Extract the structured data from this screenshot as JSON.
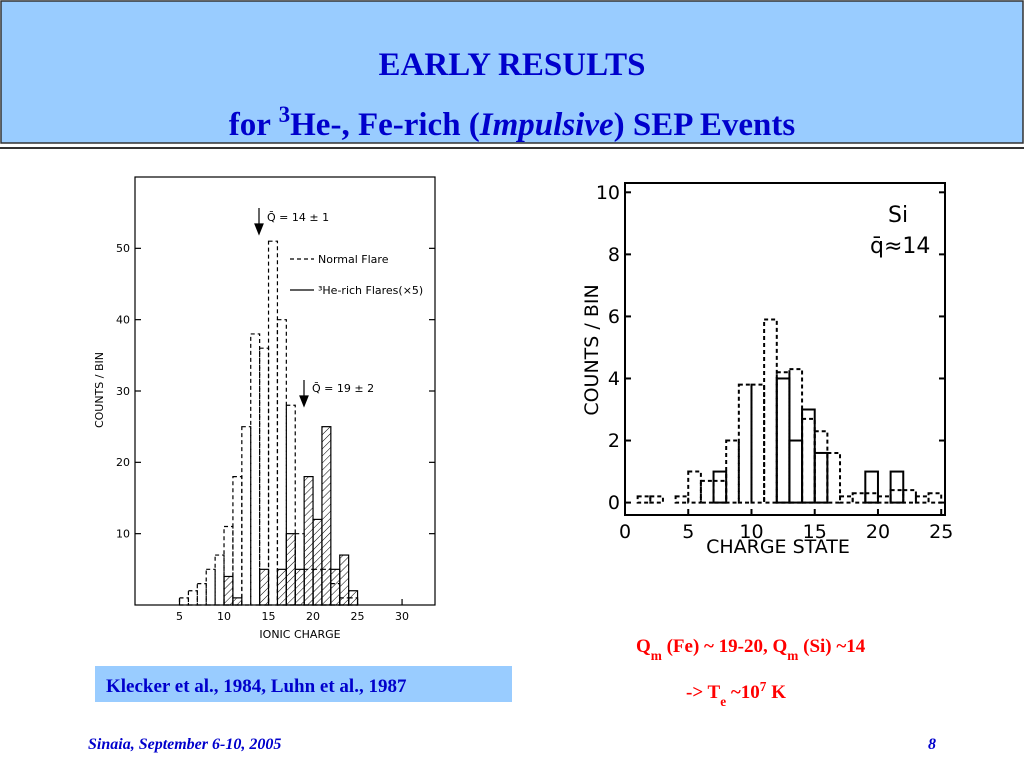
{
  "slide": {
    "title": "EARLY RESULTS",
    "subtitle_parts": [
      "for ",
      "3",
      "He-, Fe-rich (",
      "Impulsive",
      ") SEP Events"
    ],
    "caption": "Klecker et al., 1984, Luhn et al., 1987",
    "note_parts": [
      "Q",
      "m",
      " (Fe) ~ 19-20, Q",
      "m",
      " (Si) ~14"
    ],
    "note2_parts": [
      "-> T",
      "e",
      " ~10",
      "7",
      " K"
    ],
    "footer": "Sinaia, September 6-10, 2005",
    "page": "8"
  },
  "chart_data": [
    {
      "type": "histogram",
      "xlabel": "IONIC CHARGE",
      "ylabel": "COUNTS / BIN",
      "bins": [
        5,
        6,
        7,
        8,
        9,
        10,
        11,
        12,
        13,
        14,
        15,
        16,
        17,
        18,
        19,
        20,
        21,
        22,
        23,
        24,
        25
      ],
      "xlim": [
        0,
        33.7
      ],
      "xticks": [
        5,
        10,
        15,
        20,
        25,
        30
      ],
      "ylim": [
        0,
        60
      ],
      "yticks": [
        10,
        20,
        30,
        40,
        50
      ],
      "annotations": [
        "Q̄ = 14 ± 1",
        "Q̄ = 19 ± 2"
      ],
      "series": [
        {
          "name": "Normal Flare",
          "color": "#000",
          "style": "dashed",
          "values": [
            1,
            2,
            3,
            5,
            7,
            11,
            18,
            25,
            38,
            36,
            51,
            40,
            28,
            10,
            5,
            5,
            5,
            3,
            1,
            1
          ]
        },
        {
          "name": "³He-rich Flares(×5)",
          "color": "#000",
          "style": "solid",
          "hatch": true,
          "values": [
            0,
            0,
            0,
            0,
            0,
            4,
            1,
            0,
            0,
            5,
            0,
            5,
            10,
            5,
            18,
            12,
            25,
            5,
            7,
            2
          ]
        }
      ]
    },
    {
      "type": "histogram",
      "xlabel": "CHARGE STATE",
      "ylabel": "COUNTS / BIN",
      "bins": [
        0,
        1,
        2,
        3,
        4,
        5,
        6,
        7,
        8,
        9,
        10,
        11,
        12,
        13,
        14,
        15,
        16,
        17,
        18,
        19,
        20,
        21,
        22,
        23,
        24,
        25
      ],
      "xlim": [
        0,
        25.3
      ],
      "xticks": [
        0,
        5,
        10,
        15,
        20,
        25
      ],
      "ylim": [
        -0.4,
        10.3
      ],
      "yticks": [
        0,
        2,
        4,
        6,
        8,
        10
      ],
      "annotations": [
        "Si",
        "q̄≈14"
      ],
      "series": [
        {
          "color": "#000",
          "style": "dashed",
          "values": [
            0,
            0.2,
            0.2,
            0,
            0.2,
            1,
            0.7,
            0.7,
            2,
            3.8,
            3.8,
            5.9,
            4.2,
            4.3,
            2.7,
            2.3,
            1.6,
            0.2,
            0.3,
            0.3,
            0.2,
            0.4,
            0.4,
            0.2,
            0.3
          ]
        },
        {
          "color": "#000",
          "style": "solid",
          "values": [
            0,
            0,
            0,
            0,
            0,
            0,
            0,
            1,
            0,
            0,
            0,
            0,
            4,
            2,
            3,
            1.6,
            0,
            0,
            0,
            1,
            0,
            1,
            0,
            0,
            0
          ]
        }
      ]
    }
  ]
}
